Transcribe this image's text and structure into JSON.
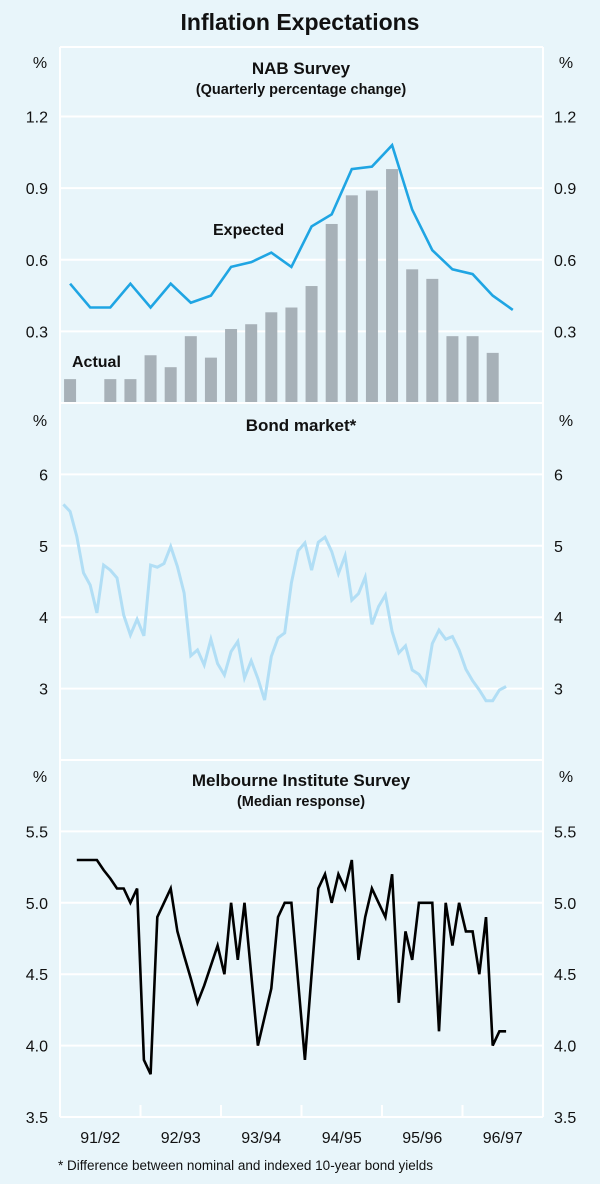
{
  "title": "Inflation Expectations",
  "footnote": "*  Difference between nominal and indexed 10-year bond yields",
  "x_axis": {
    "categories": [
      "91/92",
      "92/93",
      "93/94",
      "94/95",
      "95/96",
      "96/97"
    ]
  },
  "colors": {
    "background": "#e8f5fa",
    "grid": "#ffffff",
    "expected": "#1fa5e3",
    "actual": "#a7b1b8",
    "bond": "#b1def5",
    "melbourne": "#000000"
  },
  "chart_data": [
    {
      "type": "bar+line",
      "title": "NAB Survey",
      "subtitle": "(Quarterly percentage change)",
      "unit": "%",
      "frequency": "quarterly",
      "ylim": [
        0,
        1.5
      ],
      "yticks": [
        0.3,
        0.6,
        0.9,
        1.2
      ],
      "ytick_labels": [
        "0.3",
        "0.6",
        "0.9",
        "1.2"
      ],
      "series": [
        {
          "name": "Expected",
          "type": "line",
          "values": [
            0.5,
            0.4,
            0.4,
            0.5,
            0.4,
            0.5,
            0.42,
            0.45,
            0.57,
            0.59,
            0.63,
            0.57,
            0.74,
            0.79,
            0.98,
            0.99,
            1.08,
            0.81,
            0.64,
            0.56,
            0.54,
            0.45,
            0.39
          ]
        },
        {
          "name": "Actual",
          "type": "bar",
          "values": [
            0.1,
            null,
            0.1,
            0.1,
            0.2,
            0.15,
            0.28,
            0.19,
            0.31,
            0.33,
            0.38,
            0.4,
            0.49,
            0.75,
            0.87,
            0.89,
            0.98,
            0.56,
            0.52,
            0.28,
            0.28,
            0.21
          ]
        }
      ],
      "annotations": [
        "Expected",
        "Actual"
      ]
    },
    {
      "type": "line",
      "title": "Bond market*",
      "unit": "%",
      "frequency": "monthly",
      "ylim": [
        2,
        7
      ],
      "yticks": [
        3,
        4,
        5,
        6
      ],
      "ytick_labels": [
        "3",
        "4",
        "5",
        "6"
      ],
      "series": [
        {
          "name": "Bond market",
          "values": [
            5.58,
            5.48,
            5.13,
            4.62,
            4.45,
            4.06,
            4.73,
            4.66,
            4.55,
            4.03,
            3.75,
            3.97,
            3.74,
            4.73,
            4.7,
            4.75,
            4.99,
            4.71,
            4.34,
            3.46,
            3.54,
            3.33,
            3.69,
            3.35,
            3.19,
            3.52,
            3.66,
            3.15,
            3.39,
            3.14,
            2.84,
            3.45,
            3.71,
            3.78,
            4.48,
            4.93,
            5.04,
            4.66,
            5.05,
            5.12,
            4.92,
            4.61,
            4.86,
            4.24,
            4.33,
            4.56,
            3.9,
            4.15,
            4.31,
            3.8,
            3.5,
            3.6,
            3.26,
            3.2,
            3.06,
            3.63,
            3.82,
            3.69,
            3.73,
            3.54,
            3.27,
            3.11,
            2.98,
            2.83,
            2.83,
            2.98,
            3.03
          ]
        }
      ]
    },
    {
      "type": "line",
      "title": "Melbourne Institute Survey",
      "subtitle": "(Median response)",
      "unit": "%",
      "frequency": "monthly",
      "ylim": [
        3.5,
        6.0
      ],
      "yticks": [
        3.5,
        4.0,
        4.5,
        5.0,
        5.5
      ],
      "ytick_labels": [
        "3.5",
        "4.0",
        "4.5",
        "5.0",
        "5.5"
      ],
      "series": [
        {
          "name": "Melbourne Institute Survey",
          "values": [
            5.3,
            5.3,
            5.3,
            5.3,
            5.23,
            5.17,
            5.1,
            5.1,
            5.0,
            5.1,
            3.9,
            3.8,
            4.9,
            5.0,
            5.1,
            4.8,
            4.63,
            4.47,
            4.3,
            4.42,
            4.56,
            4.7,
            4.5,
            5.0,
            4.6,
            5.0,
            4.5,
            4.0,
            4.2,
            4.4,
            4.9,
            5.0,
            5.0,
            4.45,
            3.9,
            4.5,
            5.1,
            5.2,
            5.0,
            5.2,
            5.1,
            5.3,
            4.6,
            4.9,
            5.1,
            5.0,
            4.9,
            5.2,
            4.3,
            4.8,
            4.6,
            5.0,
            5.0,
            5.0,
            4.1,
            5.0,
            4.7,
            5.0,
            4.8,
            4.8,
            4.5,
            4.9,
            4.0,
            4.1,
            4.1
          ]
        }
      ]
    }
  ]
}
